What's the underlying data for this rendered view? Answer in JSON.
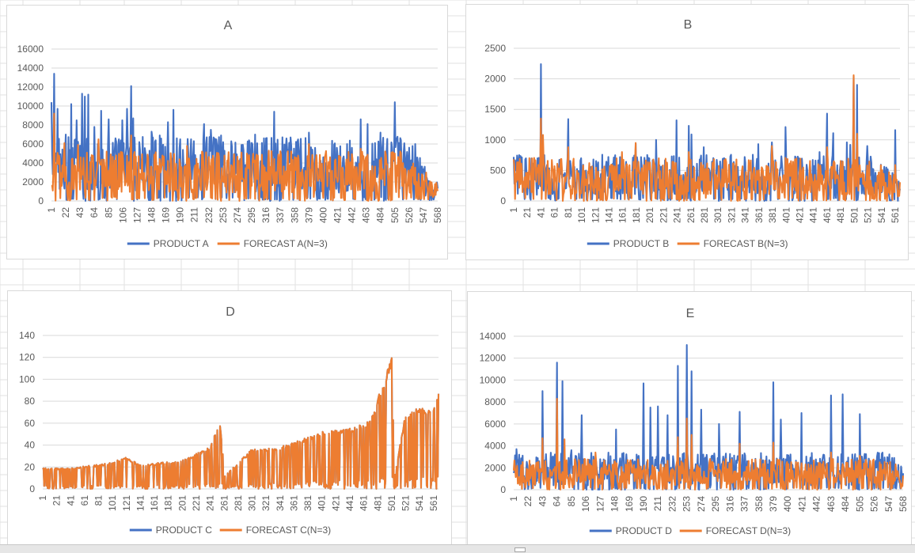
{
  "colors": {
    "actual": "#4472c4",
    "forecast": "#ed7d31",
    "gridline": "#d9d9d9",
    "axis_text": "#595959",
    "title_text": "#595959"
  },
  "chart_data": [
    {
      "type": "line",
      "title": "A",
      "xlabel": "",
      "ylabel": "",
      "ylim": [
        0,
        16000
      ],
      "y_ticks": [
        0,
        2000,
        4000,
        6000,
        8000,
        10000,
        12000,
        14000,
        16000
      ],
      "x_range": [
        1,
        568
      ],
      "x_tick_labels": [
        "1",
        "22",
        "43",
        "64",
        "85",
        "106",
        "127",
        "148",
        "169",
        "190",
        "211",
        "232",
        "253",
        "274",
        "295",
        "316",
        "337",
        "358",
        "379",
        "400",
        "421",
        "442",
        "463",
        "484",
        "505",
        "526",
        "547",
        "568"
      ],
      "grid": "horizontal",
      "legend_position": "bottom",
      "series": [
        {
          "name": "PRODUCT A",
          "color": "#4472c4",
          "base": 2700,
          "spread": 3300,
          "peaks": [
            [
              1,
              10400
            ],
            [
              5,
              13400
            ],
            [
              10,
              9700
            ],
            [
              22,
              7000
            ],
            [
              30,
              10200
            ],
            [
              38,
              8500
            ],
            [
              46,
              11300
            ],
            [
              50,
              11000
            ],
            [
              55,
              11200
            ],
            [
              64,
              7800
            ],
            [
              74,
              9500
            ],
            [
              85,
              8600
            ],
            [
              95,
              6600
            ],
            [
              105,
              8500
            ],
            [
              112,
              9700
            ],
            [
              118,
              12100
            ],
            [
              121,
              8700
            ],
            [
              130,
              6200
            ],
            [
              148,
              7300
            ],
            [
              160,
              6900
            ],
            [
              172,
              8300
            ],
            [
              180,
              9600
            ],
            [
              190,
              6500
            ],
            [
              210,
              6300
            ],
            [
              225,
              8100
            ],
            [
              235,
              7500
            ],
            [
              250,
              6900
            ],
            [
              266,
              5700
            ],
            [
              280,
              5900
            ],
            [
              300,
              7000
            ],
            [
              316,
              6600
            ],
            [
              328,
              9400
            ],
            [
              345,
              5600
            ],
            [
              362,
              6200
            ],
            [
              379,
              7200
            ],
            [
              400,
              4600
            ],
            [
              420,
              5600
            ],
            [
              442,
              5600
            ],
            [
              455,
              8600
            ],
            [
              465,
              8100
            ],
            [
              484,
              7200
            ],
            [
              487,
              5900
            ],
            [
              505,
              10400
            ],
            [
              515,
              4100
            ],
            [
              535,
              6000
            ],
            [
              548,
              3100
            ],
            [
              555,
              2100
            ],
            [
              568,
              1300
            ]
          ],
          "taper": [
            [
              520,
              1
            ],
            [
              568,
              0.35
            ]
          ]
        },
        {
          "name": "FORECAST A(N=3)",
          "color": "#ed7d31",
          "base": 2900,
          "spread": 1500,
          "peaks": [
            [
              5,
              9200
            ],
            [
              20,
              6100
            ],
            [
              40,
              5900
            ],
            [
              70,
              6500
            ],
            [
              118,
              6900
            ],
            [
              200,
              5800
            ],
            [
              320,
              5300
            ],
            [
              379,
              6000
            ],
            [
              455,
              5500
            ],
            [
              505,
              5000
            ],
            [
              520,
              3400
            ],
            [
              550,
              2100
            ]
          ],
          "taper": [
            [
              520,
              1
            ],
            [
              568,
              0.35
            ]
          ]
        }
      ]
    },
    {
      "type": "line",
      "title": "B",
      "xlabel": "",
      "ylabel": "",
      "ylim": [
        0,
        2500
      ],
      "y_ticks": [
        0,
        500,
        1000,
        1500,
        2000,
        2500
      ],
      "x_range": [
        1,
        568
      ],
      "x_tick_labels": [
        "1",
        "21",
        "41",
        "61",
        "81",
        "101",
        "121",
        "141",
        "161",
        "181",
        "201",
        "221",
        "241",
        "261",
        "281",
        "301",
        "321",
        "341",
        "361",
        "381",
        "401",
        "421",
        "441",
        "461",
        "481",
        "501",
        "521",
        "541",
        "561"
      ],
      "grid": "horizontal",
      "legend_position": "bottom",
      "series": [
        {
          "name": "PRODUCT B",
          "color": "#4472c4",
          "base": 330,
          "spread": 330,
          "peaks": [
            [
              1,
              720
            ],
            [
              41,
              2240
            ],
            [
              46,
              750
            ],
            [
              81,
              1340
            ],
            [
              100,
              700
            ],
            [
              140,
              720
            ],
            [
              180,
              940
            ],
            [
              210,
              1000
            ],
            [
              240,
              1320
            ],
            [
              258,
              1230
            ],
            [
              262,
              1090
            ],
            [
              280,
              880
            ],
            [
              300,
              560
            ],
            [
              340,
              720
            ],
            [
              360,
              930
            ],
            [
              380,
              960
            ],
            [
              400,
              1210
            ],
            [
              420,
              700
            ],
            [
              450,
              800
            ],
            [
              461,
              1430
            ],
            [
              470,
              1110
            ],
            [
              490,
              960
            ],
            [
              495,
              920
            ],
            [
              500,
              2040
            ],
            [
              505,
              1900
            ],
            [
              520,
              900
            ],
            [
              545,
              560
            ],
            [
              561,
              1160
            ],
            [
              568,
              200
            ]
          ],
          "taper": [
            [
              530,
              1
            ],
            [
              568,
              0.5
            ]
          ]
        },
        {
          "name": "FORECAST B(N=3)",
          "color": "#ed7d31",
          "base": 350,
          "spread": 250,
          "peaks": [
            [
              41,
              1350
            ],
            [
              44,
              1080
            ],
            [
              81,
              880
            ],
            [
              160,
              800
            ],
            [
              180,
              950
            ],
            [
              258,
              800
            ],
            [
              380,
              900
            ],
            [
              461,
              880
            ],
            [
              500,
              2060
            ],
            [
              505,
              1100
            ],
            [
              520,
              580
            ],
            [
              561,
              590
            ]
          ],
          "taper": [
            [
              530,
              1
            ],
            [
              568,
              0.5
            ]
          ]
        }
      ]
    },
    {
      "type": "line",
      "title": "D",
      "xlabel": "",
      "ylabel": "",
      "ylim": [
        0,
        140
      ],
      "y_ticks": [
        0,
        20,
        40,
        60,
        80,
        100,
        120,
        140
      ],
      "x_range": [
        1,
        568
      ],
      "x_tick_labels": [
        "1",
        "21",
        "41",
        "61",
        "81",
        "101",
        "121",
        "141",
        "161",
        "181",
        "201",
        "221",
        "241",
        "261",
        "281",
        "301",
        "321",
        "341",
        "361",
        "381",
        "401",
        "421",
        "441",
        "461",
        "481",
        "501",
        "521",
        "541",
        "561"
      ],
      "grid": "horizontal",
      "legend_position": "bottom",
      "series": [
        {
          "name": "PRODUCT C",
          "color": "#4472c4",
          "base": 0,
          "spread": 0,
          "envelope": [
            [
              1,
              19
            ],
            [
              40,
              19
            ],
            [
              100,
              24
            ],
            [
              120,
              30
            ],
            [
              140,
              22
            ],
            [
              200,
              26
            ],
            [
              240,
              38
            ],
            [
              255,
              62
            ],
            [
              262,
              12
            ],
            [
              300,
              36
            ],
            [
              340,
              38
            ],
            [
              400,
              52
            ],
            [
              441,
              55
            ],
            [
              470,
              62
            ],
            [
              490,
              100
            ],
            [
              501,
              121
            ],
            [
              505,
              10
            ],
            [
              520,
              67
            ],
            [
              540,
              75
            ],
            [
              560,
              70
            ],
            [
              568,
              90
            ]
          ]
        },
        {
          "name": "FORECAST C(N=3)",
          "color": "#ed7d31",
          "base": 0,
          "spread": 0,
          "envelope": [
            [
              1,
              19
            ],
            [
              40,
              19
            ],
            [
              100,
              24
            ],
            [
              120,
              30
            ],
            [
              140,
              22
            ],
            [
              200,
              26
            ],
            [
              240,
              38
            ],
            [
              255,
              62
            ],
            [
              262,
              12
            ],
            [
              300,
              36
            ],
            [
              340,
              38
            ],
            [
              400,
              52
            ],
            [
              441,
              55
            ],
            [
              470,
              62
            ],
            [
              490,
              100
            ],
            [
              501,
              121
            ],
            [
              505,
              10
            ],
            [
              520,
              67
            ],
            [
              540,
              75
            ],
            [
              560,
              70
            ],
            [
              568,
              90
            ]
          ]
        }
      ]
    },
    {
      "type": "line",
      "title": "E",
      "xlabel": "",
      "ylabel": "",
      "ylim": [
        0,
        14000
      ],
      "y_ticks": [
        0,
        2000,
        4000,
        6000,
        8000,
        10000,
        12000,
        14000
      ],
      "x_range": [
        1,
        568
      ],
      "x_tick_labels": [
        "1",
        "22",
        "43",
        "64",
        "85",
        "106",
        "127",
        "148",
        "169",
        "190",
        "211",
        "232",
        "253",
        "274",
        "295",
        "316",
        "337",
        "358",
        "379",
        "400",
        "421",
        "442",
        "463",
        "484",
        "505",
        "526",
        "547",
        "568"
      ],
      "grid": "horizontal",
      "legend_position": "bottom",
      "series": [
        {
          "name": "PRODUCT D",
          "color": "#4472c4",
          "base": 1300,
          "spread": 1700,
          "peaks": [
            [
              5,
              3700
            ],
            [
              43,
              9000
            ],
            [
              64,
              11600
            ],
            [
              72,
              9900
            ],
            [
              85,
              3600
            ],
            [
              100,
              6800
            ],
            [
              150,
              5500
            ],
            [
              190,
              9700
            ],
            [
              200,
              7500
            ],
            [
              211,
              7600
            ],
            [
              225,
              6800
            ],
            [
              240,
              11300
            ],
            [
              253,
              13200
            ],
            [
              260,
              10800
            ],
            [
              274,
              7300
            ],
            [
              300,
              6000
            ],
            [
              330,
              7100
            ],
            [
              379,
              9800
            ],
            [
              390,
              6400
            ],
            [
              420,
              7000
            ],
            [
              463,
              8600
            ],
            [
              480,
              8700
            ],
            [
              505,
              6900
            ],
            [
              530,
              3000
            ],
            [
              555,
              2900
            ],
            [
              568,
              1500
            ]
          ],
          "taper": [
            [
              545,
              1
            ],
            [
              568,
              0.7
            ]
          ]
        },
        {
          "name": "FORECAST D(N=3)",
          "color": "#ed7d31",
          "base": 1400,
          "spread": 1000,
          "peaks": [
            [
              43,
              4700
            ],
            [
              64,
              8300
            ],
            [
              75,
              4600
            ],
            [
              120,
              3400
            ],
            [
              240,
              4800
            ],
            [
              253,
              6500
            ],
            [
              260,
              5000
            ],
            [
              330,
              4200
            ],
            [
              379,
              4300
            ],
            [
              463,
              3400
            ],
            [
              505,
              3100
            ],
            [
              560,
              1700
            ]
          ],
          "taper": [
            [
              545,
              1
            ],
            [
              568,
              0.7
            ]
          ]
        }
      ]
    }
  ]
}
